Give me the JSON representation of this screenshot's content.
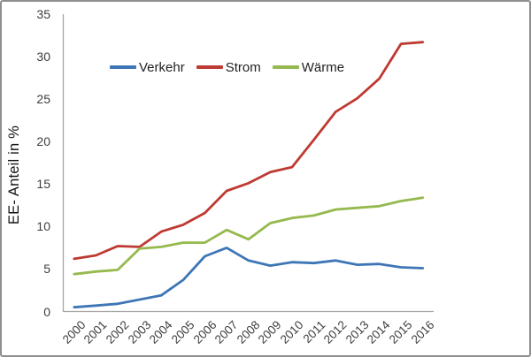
{
  "chart_data": {
    "type": "line",
    "title": "",
    "ylabel": "EE- Anteil in %",
    "xlabel": "",
    "x": [
      "2000",
      "2001",
      "2002",
      "2003",
      "2004",
      "2005",
      "2006",
      "2007",
      "2008",
      "2009",
      "2010",
      "2011",
      "2012",
      "2013",
      "2014",
      "2015",
      "2016"
    ],
    "ylim": [
      0,
      35
    ],
    "yticks": [
      0,
      5,
      10,
      15,
      20,
      25,
      30,
      35
    ],
    "grid": false,
    "legend": {
      "position": "top-inside",
      "orientation": "horizontal"
    },
    "series": [
      {
        "name": "Verkehr",
        "color": "#3E76B5",
        "values": [
          0.5,
          0.7,
          0.9,
          1.4,
          1.9,
          3.7,
          6.5,
          7.5,
          6.0,
          5.4,
          5.8,
          5.7,
          6.0,
          5.5,
          5.6,
          5.2,
          5.1
        ]
      },
      {
        "name": "Strom",
        "color": "#BE3A32",
        "values": [
          6.2,
          6.6,
          7.7,
          7.6,
          9.4,
          10.2,
          11.6,
          14.2,
          15.1,
          16.4,
          17.0,
          20.2,
          23.5,
          25.1,
          27.4,
          31.5,
          31.7
        ]
      },
      {
        "name": "Wärme",
        "color": "#95B94E",
        "values": [
          4.4,
          4.7,
          4.9,
          7.4,
          7.6,
          8.1,
          8.1,
          9.6,
          8.5,
          10.4,
          11.0,
          11.3,
          12.0,
          12.2,
          12.4,
          13.0,
          13.4
        ]
      }
    ]
  },
  "frame": {
    "border_color": "#8E8E8E",
    "axis_color": "#A6A6A6",
    "tick_text_color": "#3D3D3D"
  }
}
